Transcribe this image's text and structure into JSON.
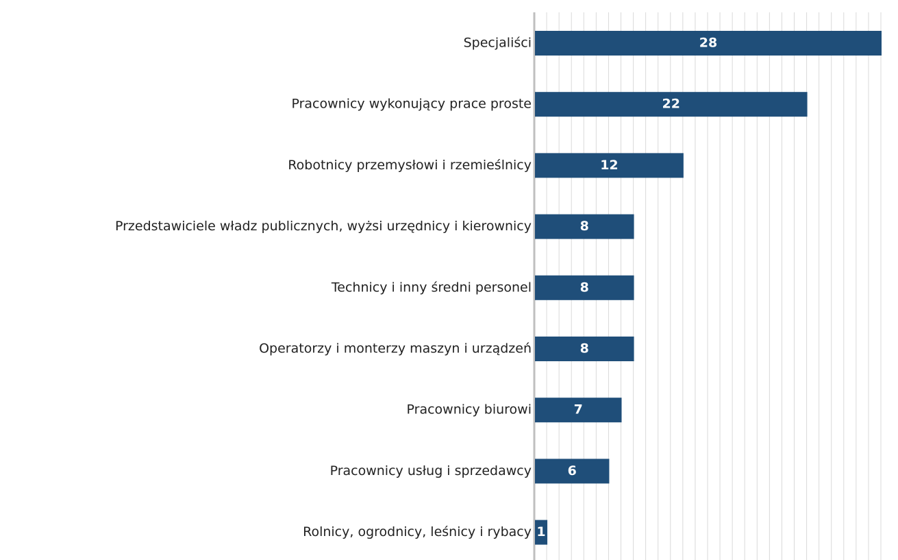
{
  "chart_data": {
    "type": "hbar",
    "categories": [
      "Specjaliści",
      "Pracownicy wykonujący prace proste",
      "Robotnicy przemysłowi i rzemieślnicy",
      "Przedstawiciele władz publicznych, wyżsi urzędnicy i kierownicy",
      "Technicy i inny średni personel",
      "Operatorzy i monterzy maszyn i urządzeń",
      "Pracownicy biurowi",
      "Pracownicy usług i sprzedawcy",
      "Rolnicy, ogrodnicy, leśnicy i rybacy"
    ],
    "values": [
      28,
      22,
      12,
      8,
      8,
      8,
      7,
      6,
      1
    ],
    "color": "#1f4e79",
    "xlim": [
      0,
      28
    ],
    "xticks": [
      0,
      1,
      2,
      3,
      4,
      5,
      6,
      7,
      8,
      9,
      10,
      11,
      12,
      13,
      14,
      15,
      16,
      17,
      18,
      19,
      20,
      21,
      22,
      23,
      24,
      25,
      26,
      27,
      28
    ],
    "grid": true
  }
}
